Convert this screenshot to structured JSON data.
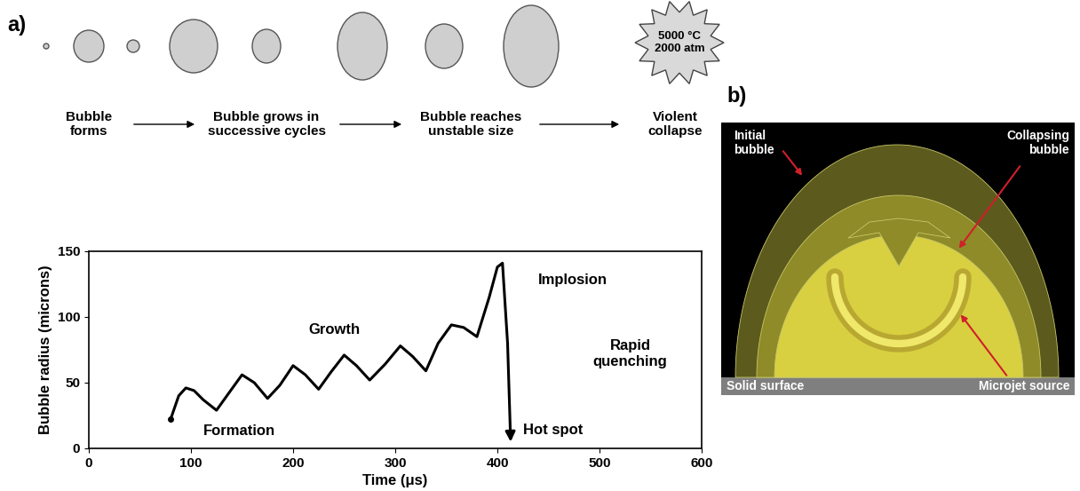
{
  "panel_labels": [
    "a)",
    "b)"
  ],
  "bubble_stages": {
    "labels": [
      "Bubble\nforms",
      "Bubble grows in\nsuccessive cycles",
      "Bubble reaches\nunstable size",
      "Violent\ncollapse"
    ],
    "collapse_conditions": "5000 °C\n2000 atm"
  },
  "chart_data": {
    "type": "line",
    "x_label": "Time (μs)",
    "y_label": "Bubble radius (microns)",
    "x": [
      80,
      88,
      95,
      103,
      112,
      125,
      137,
      150,
      162,
      175,
      187,
      200,
      212,
      225,
      237,
      250,
      262,
      275,
      290,
      305,
      317,
      330,
      342,
      355,
      367,
      380,
      392,
      400,
      405,
      410,
      413
    ],
    "values": [
      22,
      40,
      46,
      44,
      37,
      29,
      42,
      56,
      50,
      38,
      48,
      63,
      56,
      45,
      58,
      71,
      63,
      52,
      64,
      78,
      70,
      59,
      80,
      94,
      92,
      85,
      115,
      138,
      141,
      80,
      5
    ],
    "color": "#000000",
    "xlim": [
      0,
      600
    ],
    "ylim": [
      0,
      150
    ],
    "xticks": [
      0,
      100,
      200,
      300,
      400,
      500,
      600
    ],
    "yticks": [
      0,
      50,
      100,
      150
    ],
    "annotations": [
      "Formation",
      "Growth",
      "Implosion",
      "Rapid\nquenching",
      "Hot spot"
    ]
  },
  "panel_b": {
    "initial": "Initial\nbubble",
    "collapsing": "Collapsing\nbubble",
    "surface": "Solid surface",
    "microjet": "Microjet source"
  }
}
